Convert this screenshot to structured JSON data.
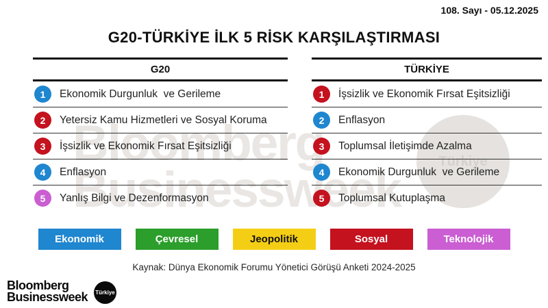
{
  "meta": {
    "issue_date": "108. Sayı - 05.12.2025"
  },
  "title": "G20-TÜRKİYE İLK 5 RİSK KARŞILAŞTIRMASI",
  "category_colors": {
    "ekonomik": "#1f86d0",
    "cevresel": "#2b9e2b",
    "jeopolitik": "#f4ce15",
    "sosyal": "#c4121e",
    "teknolojik": "#ca5ed2"
  },
  "columns": [
    {
      "header": "G20",
      "risks": [
        {
          "rank": "1",
          "label": "Ekonomik Durgunluk  ve Gerileme",
          "category": "ekonomik"
        },
        {
          "rank": "2",
          "label": "Yetersiz Kamu Hizmetleri ve Sosyal Koruma",
          "category": "sosyal"
        },
        {
          "rank": "3",
          "label": "İşsizlik ve Ekonomik Fırsat Eşitsizliği",
          "category": "sosyal"
        },
        {
          "rank": "4",
          "label": "Enflasyon",
          "category": "ekonomik"
        },
        {
          "rank": "5",
          "label": "Yanlış Bilgi ve Dezenformasyon",
          "category": "teknolojik"
        }
      ]
    },
    {
      "header": "TÜRKİYE",
      "risks": [
        {
          "rank": "1",
          "label": "İşsizlik ve Ekonomik Fırsat Eşitsizliği",
          "category": "sosyal"
        },
        {
          "rank": "2",
          "label": "Enflasyon",
          "category": "ekonomik"
        },
        {
          "rank": "3",
          "label": "Toplumsal İletişimde Azalma",
          "category": "sosyal"
        },
        {
          "rank": "4",
          "label": "Ekonomik Durgunluk  ve Gerileme",
          "category": "ekonomik"
        },
        {
          "rank": "5",
          "label": "Toplumsal Kutuplaşma",
          "category": "sosyal"
        }
      ]
    }
  ],
  "legend": [
    {
      "label": "Ekonomik",
      "color": "#1f86d0",
      "text_color": "#ffffff"
    },
    {
      "label": "Çevresel",
      "color": "#2b9e2b",
      "text_color": "#ffffff"
    },
    {
      "label": "Jeopolitik",
      "color": "#f4ce15",
      "text_color": "#111111"
    },
    {
      "label": "Sosyal",
      "color": "#c4121e",
      "text_color": "#ffffff"
    },
    {
      "label": "Teknolojik",
      "color": "#ca5ed2",
      "text_color": "#ffffff"
    }
  ],
  "source": "Kaynak: Dünya Ekonomik Forumu Yönetici Görüşü Anketi 2024-2025",
  "watermark": {
    "line1": "Bloomberg",
    "line2": "Businessweek",
    "badge": "Türkiye"
  },
  "brand": {
    "line1": "Bloomberg",
    "line2": "Businessweek",
    "badge": "Türkiye"
  },
  "chart_data": {
    "type": "table",
    "title": "G20-TÜRKİYE İLK 5 RİSK KARŞILAŞTIRMASI",
    "columns": [
      "G20",
      "TÜRKİYE"
    ],
    "rows": [
      {
        "rank": 1,
        "g20": "Ekonomik Durgunluk ve Gerileme",
        "g20_category": "Ekonomik",
        "turkiye": "İşsizlik ve Ekonomik Fırsat Eşitsizliği",
        "turkiye_category": "Sosyal"
      },
      {
        "rank": 2,
        "g20": "Yetersiz Kamu Hizmetleri ve Sosyal Koruma",
        "g20_category": "Sosyal",
        "turkiye": "Enflasyon",
        "turkiye_category": "Ekonomik"
      },
      {
        "rank": 3,
        "g20": "İşsizlik ve Ekonomik Fırsat Eşitsizliği",
        "g20_category": "Sosyal",
        "turkiye": "Toplumsal İletişimde Azalma",
        "turkiye_category": "Sosyal"
      },
      {
        "rank": 4,
        "g20": "Enflasyon",
        "g20_category": "Ekonomik",
        "turkiye": "Ekonomik Durgunluk ve Gerileme",
        "turkiye_category": "Ekonomik"
      },
      {
        "rank": 5,
        "g20": "Yanlış Bilgi ve Dezenformasyon",
        "g20_category": "Teknolojik",
        "turkiye": "Toplumsal Kutuplaşma",
        "turkiye_category": "Sosyal"
      }
    ],
    "legend": [
      "Ekonomik",
      "Çevresel",
      "Jeopolitik",
      "Sosyal",
      "Teknolojik"
    ],
    "legend_position": "bottom",
    "source": "Kaynak: Dünya Ekonomik Forumu Yönetici Görüşü Anketi 2024-2025"
  }
}
